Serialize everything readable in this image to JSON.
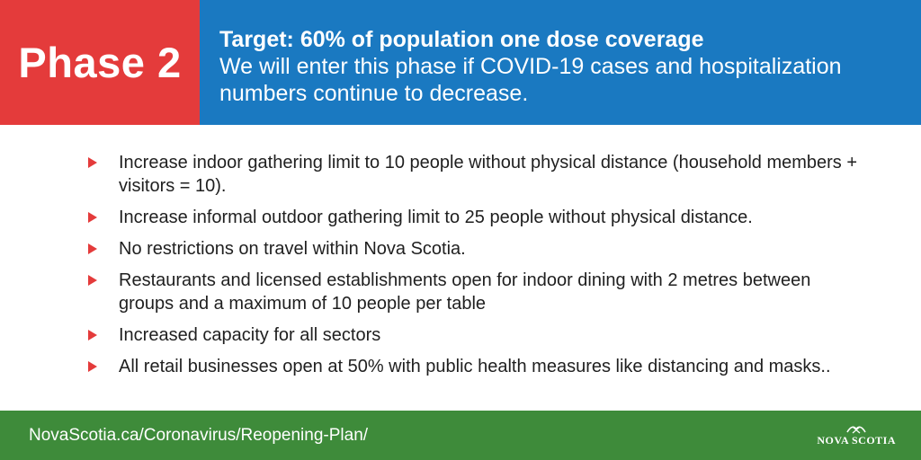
{
  "header": {
    "phase_label": "Phase 2",
    "target_title": "Target: 60% of population one dose coverage",
    "target_description": "We will enter this phase if COVID-19 cases and hospitalization numbers continue to decrease."
  },
  "bullets": [
    "Increase indoor gathering limit to 10 people without physical distance (household members + visitors = 10).",
    "Increase informal outdoor gathering limit to 25 people without physical distance.",
    "No restrictions on travel within Nova Scotia.",
    "Restaurants and licensed establishments open for indoor dining with 2 metres between groups and a maximum of 10 people per table",
    "Increased capacity for all sectors",
    "All retail businesses open at 50% with public health measures like distancing and masks.."
  ],
  "footer": {
    "url": "NovaScotia.ca/Coronavirus/Reopening-Plan/",
    "logo_text": "NOVA SCOTIA"
  },
  "colors": {
    "phase_red": "#e43b3b",
    "header_blue": "#1a79c1",
    "footer_green": "#3e8b3a"
  }
}
